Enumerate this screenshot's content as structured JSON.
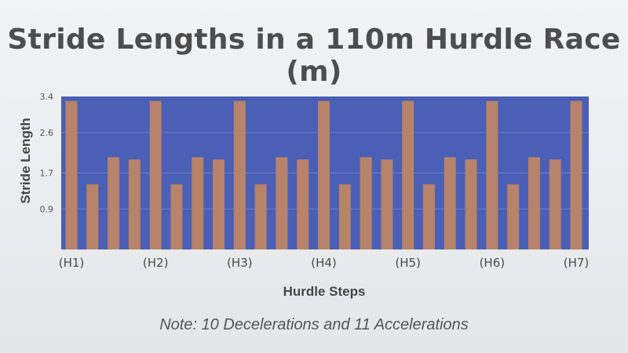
{
  "slide": {
    "title": "Stride Lengths in a 110m Hurdle Race (m)",
    "note": "Note: 10 Decelerations and 11 Accelerations"
  },
  "chart_data": {
    "type": "bar",
    "xlabel": "Hurdle Steps",
    "ylabel": "Stride Length",
    "ylim": [
      0,
      3.4
    ],
    "yticks": [
      0.9,
      1.7,
      2.6,
      3.4
    ],
    "xtick_labels": [
      "(H1)",
      "(H2)",
      "(H3)",
      "(H4)",
      "(H5)",
      "(H6)",
      "(H7)"
    ],
    "values": [
      3.3,
      1.45,
      2.05,
      2.0,
      3.3,
      1.45,
      2.05,
      2.0,
      3.3,
      1.45,
      2.05,
      2.0,
      3.3,
      1.45,
      2.05,
      2.0,
      3.3,
      1.45,
      2.05,
      2.0,
      3.3,
      1.45,
      2.05,
      2.0,
      3.3
    ],
    "grid": true,
    "colors": {
      "plot_background": "#4a5fb5",
      "bar": "#b7836a",
      "grid": "#6a7cc4"
    }
  }
}
